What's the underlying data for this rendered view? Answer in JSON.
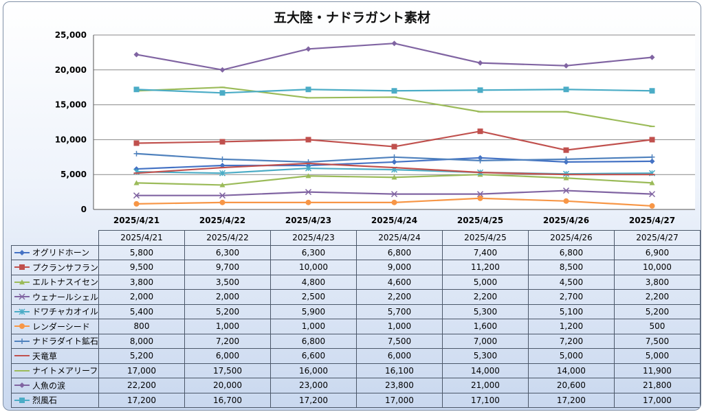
{
  "chart_data": {
    "type": "line",
    "title": "五大陸・ナドラガント素材",
    "categories": [
      "2025/4/21",
      "2025/4/22",
      "2025/4/23",
      "2025/4/24",
      "2025/4/25",
      "2025/4/26",
      "2025/4/27"
    ],
    "ylim": [
      0,
      25000
    ],
    "yticks": [
      "0",
      "5,000",
      "10,000",
      "15,000",
      "20,000",
      "25,000"
    ],
    "grid": true,
    "legend": "data table",
    "series": [
      {
        "name": "オグリドホーン",
        "color": "#4472c4",
        "marker": "diamond",
        "values": [
          5800,
          6300,
          6300,
          6800,
          7400,
          6800,
          6900
        ],
        "labels": [
          "5,800",
          "6,300",
          "6,300",
          "6,800",
          "7,400",
          "6,800",
          "6,900"
        ]
      },
      {
        "name": "プクランサフラン",
        "color": "#c0504d",
        "marker": "square",
        "values": [
          9500,
          9700,
          10000,
          9000,
          11200,
          8500,
          10000
        ],
        "labels": [
          "9,500",
          "9,700",
          "10,000",
          "9,000",
          "11,200",
          "8,500",
          "10,000"
        ]
      },
      {
        "name": "エルトナスイセン",
        "color": "#9bbb59",
        "marker": "triangle",
        "values": [
          3800,
          3500,
          4800,
          4600,
          5000,
          4500,
          3800
        ],
        "labels": [
          "3,800",
          "3,500",
          "4,800",
          "4,600",
          "5,000",
          "4,500",
          "3,800"
        ]
      },
      {
        "name": "ウェナールシェル",
        "color": "#8064a2",
        "marker": "x",
        "values": [
          2000,
          2000,
          2500,
          2200,
          2200,
          2700,
          2200
        ],
        "labels": [
          "2,000",
          "2,000",
          "2,500",
          "2,200",
          "2,200",
          "2,700",
          "2,200"
        ]
      },
      {
        "name": "ドワチャカオイル",
        "color": "#4bacc6",
        "marker": "star",
        "values": [
          5400,
          5200,
          5900,
          5700,
          5300,
          5100,
          5200
        ],
        "labels": [
          "5,400",
          "5,200",
          "5,900",
          "5,700",
          "5,300",
          "5,100",
          "5,200"
        ]
      },
      {
        "name": "レンダーシード",
        "color": "#f79646",
        "marker": "circle",
        "values": [
          800,
          1000,
          1000,
          1000,
          1600,
          1200,
          500
        ],
        "labels": [
          "800",
          "1,000",
          "1,000",
          "1,000",
          "1,600",
          "1,200",
          "500"
        ]
      },
      {
        "name": "ナドラダイト鉱石",
        "color": "#4f81bd",
        "marker": "plus",
        "values": [
          8000,
          7200,
          6800,
          7500,
          7000,
          7200,
          7500
        ],
        "labels": [
          "8,000",
          "7,200",
          "6,800",
          "7,500",
          "7,000",
          "7,200",
          "7,500"
        ]
      },
      {
        "name": "天竜草",
        "color": "#c0504d",
        "marker": "dash",
        "values": [
          5200,
          6000,
          6600,
          6000,
          5300,
          5000,
          5000
        ],
        "labels": [
          "5,200",
          "6,000",
          "6,600",
          "6,000",
          "5,300",
          "5,000",
          "5,000"
        ]
      },
      {
        "name": "ナイトメアリーフ",
        "color": "#9bbb59",
        "marker": "dash",
        "values": [
          17000,
          17500,
          16000,
          16100,
          14000,
          14000,
          11900
        ],
        "labels": [
          "17,000",
          "17,500",
          "16,000",
          "16,100",
          "14,000",
          "14,000",
          "11,900"
        ]
      },
      {
        "name": "人魚の涙",
        "color": "#8064a2",
        "marker": "diamond",
        "values": [
          22200,
          20000,
          23000,
          23800,
          21000,
          20600,
          21800
        ],
        "labels": [
          "22,200",
          "20,000",
          "23,000",
          "23,800",
          "21,000",
          "20,600",
          "21,800"
        ]
      },
      {
        "name": "烈風石",
        "color": "#4bacc6",
        "marker": "square",
        "values": [
          17200,
          16700,
          17200,
          17000,
          17100,
          17200,
          17000
        ],
        "labels": [
          "17,200",
          "16,700",
          "17,200",
          "17,000",
          "17,100",
          "17,200",
          "17,000"
        ]
      }
    ]
  }
}
